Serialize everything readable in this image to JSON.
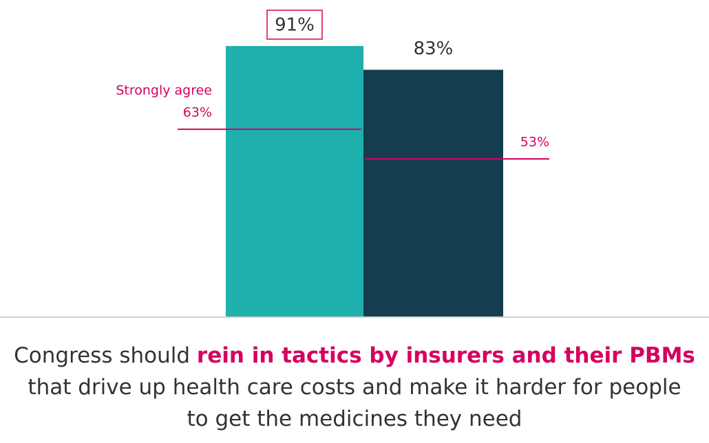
{
  "chart_data": {
    "type": "bar",
    "values": [
      91,
      83
    ],
    "value_labels": [
      "91%",
      "83%"
    ],
    "colors": [
      "#1fb0ae",
      "#143d4f"
    ],
    "boxed_label": 0,
    "ylim": [
      0,
      100
    ],
    "strongly_agree": {
      "label": "Strongly agree",
      "values": [
        63,
        53
      ],
      "value_labels": [
        "63%",
        "53%"
      ],
      "color": "#d6005f"
    },
    "caption": [
      {
        "text": "Congress should ",
        "bold": false
      },
      {
        "text": "rein in tactics by insurers and their PBMs",
        "bold": true
      },
      {
        "text": " that drive up health care costs and make it harder for people to get the medicines they need",
        "bold": false
      }
    ]
  }
}
